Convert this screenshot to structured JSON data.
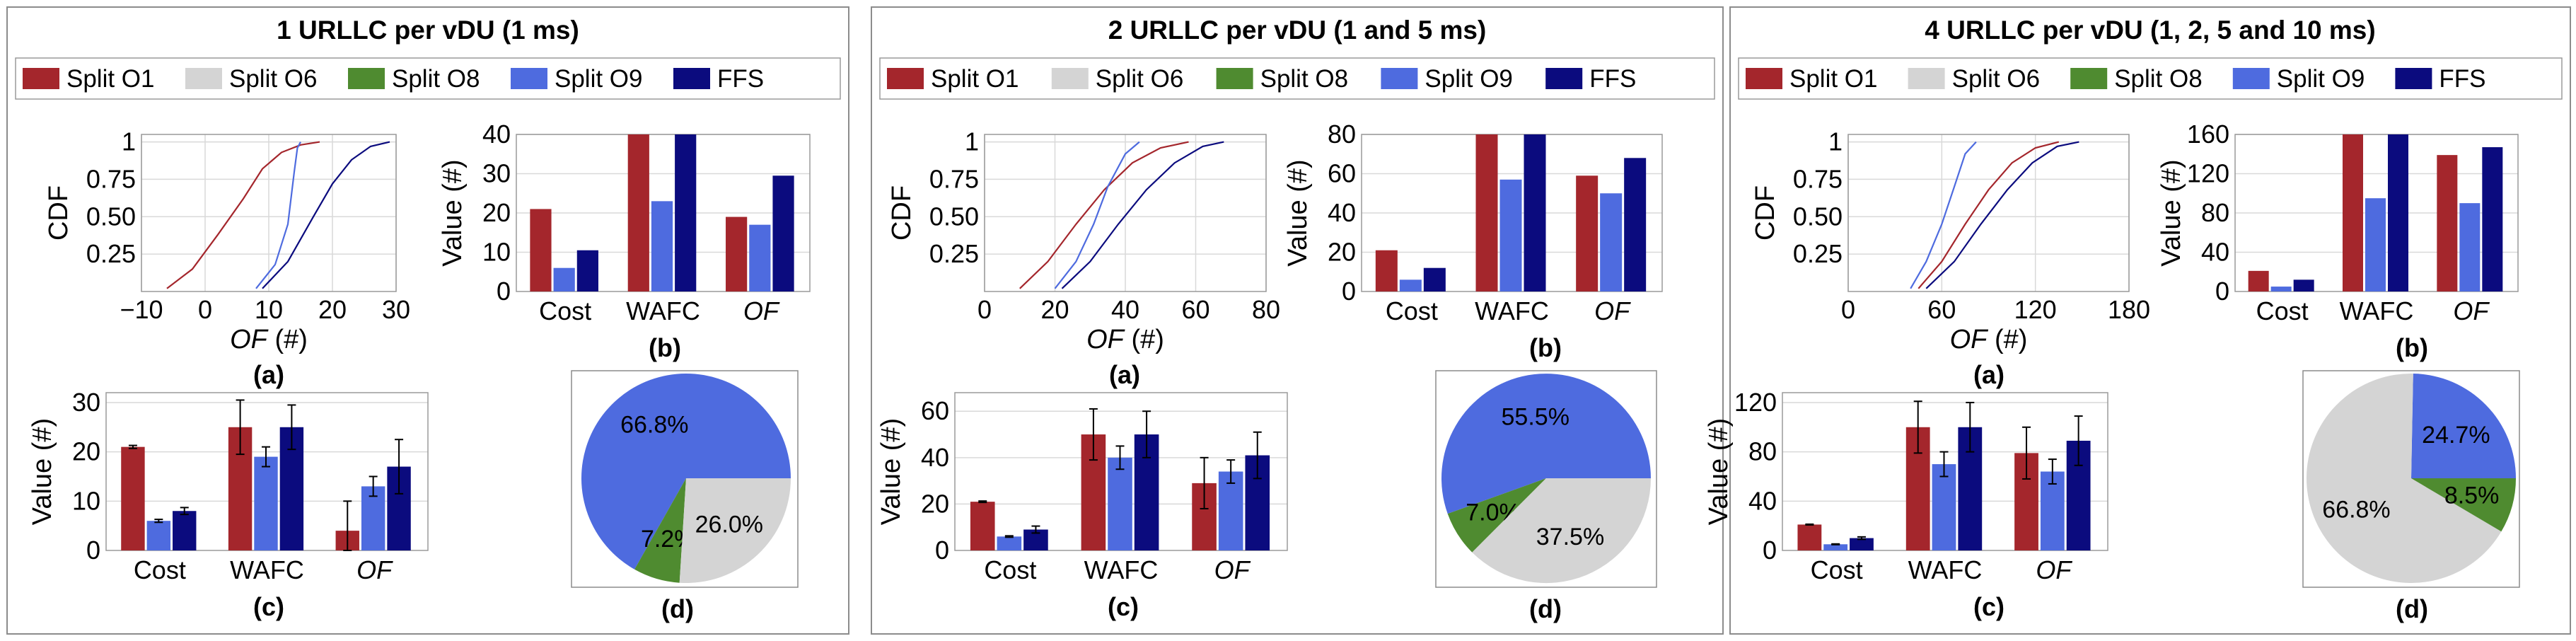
{
  "colors": {
    "Split O1": "#a4262c",
    "Split O6": "#d4d4d4",
    "Split O8": "#4f8b30",
    "Split O9": "#4e6bdf",
    "FFS": "#0b0b7e"
  },
  "legend": [
    "Split O1",
    "Split O6",
    "Split O8",
    "Split O9",
    "FFS"
  ],
  "sublabels": {
    "a": "(a)",
    "b": "(b)",
    "c": "(c)",
    "d": "(d)"
  },
  "chart_data": [
    {
      "title": "1 URLLC per vDU (1 ms)",
      "cdf": {
        "type": "line",
        "xlabel": "OF (#)",
        "ylabel": "CDF",
        "xlim": [
          -10,
          30
        ],
        "xticks": [
          -10,
          0,
          10,
          20,
          30
        ],
        "ylim": [
          0,
          1.05
        ],
        "yticks": [
          0.25,
          0.5,
          0.75,
          1.0
        ],
        "series": [
          {
            "name": "Split O1",
            "points": [
              [
                -6,
                0.02
              ],
              [
                -2,
                0.15
              ],
              [
                2,
                0.38
              ],
              [
                6,
                0.62
              ],
              [
                9,
                0.82
              ],
              [
                12,
                0.93
              ],
              [
                15,
                0.98
              ],
              [
                18,
                1.0
              ]
            ]
          },
          {
            "name": "Split O9",
            "points": [
              [
                8,
                0.02
              ],
              [
                11,
                0.18
              ],
              [
                13,
                0.45
              ],
              [
                14,
                0.8
              ],
              [
                14.5,
                0.96
              ],
              [
                15,
                1.0
              ]
            ]
          },
          {
            "name": "FFS",
            "points": [
              [
                9,
                0.02
              ],
              [
                13,
                0.2
              ],
              [
                17,
                0.5
              ],
              [
                20,
                0.72
              ],
              [
                23,
                0.88
              ],
              [
                26,
                0.97
              ],
              [
                29,
                1.0
              ]
            ]
          }
        ]
      },
      "bar": {
        "type": "bar",
        "ylabel": "Value (#)",
        "categories": [
          "Cost",
          "WAFC",
          "OF"
        ],
        "ylim": [
          0,
          40
        ],
        "yticks": [
          0,
          10,
          20,
          30,
          40
        ],
        "series": [
          {
            "name": "Split O1",
            "values": [
              21,
              40,
              19
            ]
          },
          {
            "name": "Split O9",
            "values": [
              6,
              23,
              17
            ]
          },
          {
            "name": "FFS",
            "values": [
              10.5,
              40,
              29.5
            ]
          }
        ]
      },
      "errbar": {
        "type": "bar",
        "ylabel": "Value (#)",
        "categories": [
          "Cost",
          "WAFC",
          "OF"
        ],
        "ylim": [
          0,
          32
        ],
        "yticks": [
          0,
          10,
          20,
          30
        ],
        "series": [
          {
            "name": "Split O1",
            "values": [
              21,
              25,
              4
            ],
            "errors": [
              0.3,
              5.5,
              6
            ]
          },
          {
            "name": "Split O9",
            "values": [
              6,
              19,
              13
            ],
            "errors": [
              0.3,
              2,
              2
            ]
          },
          {
            "name": "FFS",
            "values": [
              8,
              25,
              17
            ],
            "errors": [
              0.7,
              4.5,
              5.5
            ]
          }
        ]
      },
      "pie": {
        "type": "pie",
        "slices": [
          {
            "name": "Split O9",
            "value": 66.8,
            "label": "66.8%"
          },
          {
            "name": "Split O8",
            "value": 7.2,
            "label": "7.2%"
          },
          {
            "name": "Split O6",
            "value": 26.0,
            "label": "26.0%"
          }
        ]
      }
    },
    {
      "title": "2 URLLC per vDU (1 and 5 ms)",
      "cdf": {
        "type": "line",
        "xlabel": "OF (#)",
        "ylabel": "CDF",
        "xlim": [
          0,
          80
        ],
        "xticks": [
          0,
          20,
          40,
          60,
          80
        ],
        "ylim": [
          0,
          1.05
        ],
        "yticks": [
          0.25,
          0.5,
          0.75,
          1.0
        ],
        "series": [
          {
            "name": "Split O1",
            "points": [
              [
                10,
                0.02
              ],
              [
                18,
                0.2
              ],
              [
                26,
                0.45
              ],
              [
                34,
                0.68
              ],
              [
                42,
                0.86
              ],
              [
                50,
                0.96
              ],
              [
                58,
                1.0
              ]
            ]
          },
          {
            "name": "Split O9",
            "points": [
              [
                20,
                0.02
              ],
              [
                26,
                0.2
              ],
              [
                31,
                0.45
              ],
              [
                35,
                0.7
              ],
              [
                40,
                0.92
              ],
              [
                44,
                1.0
              ]
            ]
          },
          {
            "name": "FFS",
            "points": [
              [
                22,
                0.02
              ],
              [
                30,
                0.2
              ],
              [
                38,
                0.45
              ],
              [
                46,
                0.68
              ],
              [
                54,
                0.86
              ],
              [
                62,
                0.97
              ],
              [
                68,
                1.0
              ]
            ]
          }
        ]
      },
      "bar": {
        "type": "bar",
        "ylabel": "Value (#)",
        "categories": [
          "Cost",
          "WAFC",
          "OF"
        ],
        "ylim": [
          0,
          80
        ],
        "yticks": [
          0,
          20,
          40,
          60,
          80
        ],
        "series": [
          {
            "name": "Split O1",
            "values": [
              21,
              80,
              59
            ]
          },
          {
            "name": "Split O9",
            "values": [
              6,
              57,
              50
            ]
          },
          {
            "name": "FFS",
            "values": [
              12,
              80,
              68
            ]
          }
        ]
      },
      "errbar": {
        "type": "bar",
        "ylabel": "Value (#)",
        "categories": [
          "Cost",
          "WAFC",
          "OF"
        ],
        "ylim": [
          0,
          68
        ],
        "yticks": [
          0,
          20,
          40,
          60
        ],
        "series": [
          {
            "name": "Split O1",
            "values": [
              21,
              50,
              29
            ],
            "errors": [
              0.3,
              11,
              11
            ]
          },
          {
            "name": "Split O9",
            "values": [
              6,
              40,
              34
            ],
            "errors": [
              0.3,
              5,
              5
            ]
          },
          {
            "name": "FFS",
            "values": [
              9,
              50,
              41
            ],
            "errors": [
              1.5,
              10,
              10
            ]
          }
        ]
      },
      "pie": {
        "type": "pie",
        "slices": [
          {
            "name": "Split O9",
            "value": 55.5,
            "label": "55.5%"
          },
          {
            "name": "Split O8",
            "value": 7.0,
            "label": "7.0%"
          },
          {
            "name": "Split O6",
            "value": 37.5,
            "label": "37.5%"
          }
        ]
      }
    },
    {
      "title": "4 URLLC per vDU (1, 2, 5 and 10 ms)",
      "cdf": {
        "type": "line",
        "xlabel": "OF (#)",
        "ylabel": "CDF",
        "xlim": [
          0,
          180
        ],
        "xticks": [
          0,
          60,
          120,
          180
        ],
        "ylim": [
          0,
          1.05
        ],
        "yticks": [
          0.25,
          0.5,
          0.75,
          1.0
        ],
        "series": [
          {
            "name": "Split O1",
            "points": [
              [
                45,
                0.02
              ],
              [
                60,
                0.2
              ],
              [
                75,
                0.45
              ],
              [
                90,
                0.68
              ],
              [
                105,
                0.86
              ],
              [
                120,
                0.96
              ],
              [
                135,
                1.0
              ]
            ]
          },
          {
            "name": "Split O9",
            "points": [
              [
                40,
                0.02
              ],
              [
                50,
                0.2
              ],
              [
                60,
                0.45
              ],
              [
                68,
                0.7
              ],
              [
                75,
                0.92
              ],
              [
                82,
                1.0
              ]
            ]
          },
          {
            "name": "FFS",
            "points": [
              [
                50,
                0.02
              ],
              [
                68,
                0.2
              ],
              [
                85,
                0.45
              ],
              [
                102,
                0.68
              ],
              [
                118,
                0.86
              ],
              [
                134,
                0.97
              ],
              [
                148,
                1.0
              ]
            ]
          }
        ]
      },
      "bar": {
        "type": "bar",
        "ylabel": "Value (#)",
        "categories": [
          "Cost",
          "WAFC",
          "OF"
        ],
        "ylim": [
          0,
          160
        ],
        "yticks": [
          0,
          40,
          80,
          120,
          160
        ],
        "series": [
          {
            "name": "Split O1",
            "values": [
              21,
              160,
              139
            ]
          },
          {
            "name": "Split O9",
            "values": [
              5,
              95,
              90
            ]
          },
          {
            "name": "FFS",
            "values": [
              12,
              160,
              147
            ]
          }
        ]
      },
      "errbar": {
        "type": "bar",
        "ylabel": "Value (#)",
        "categories": [
          "Cost",
          "WAFC",
          "OF"
        ],
        "ylim": [
          0,
          128
        ],
        "yticks": [
          0,
          40,
          80,
          120
        ],
        "series": [
          {
            "name": "Split O1",
            "values": [
              21,
              100,
              79
            ],
            "errors": [
              0.3,
              21,
              21
            ]
          },
          {
            "name": "Split O9",
            "values": [
              5,
              70,
              64
            ],
            "errors": [
              0.3,
              10,
              10
            ]
          },
          {
            "name": "FFS",
            "values": [
              10,
              100,
              89
            ],
            "errors": [
              1,
              20,
              20
            ]
          }
        ]
      },
      "pie": {
        "type": "pie",
        "slices": [
          {
            "name": "Split O9",
            "value": 24.7,
            "label": "24.7%"
          },
          {
            "name": "Split O6",
            "value": 66.8,
            "label": "66.8%"
          },
          {
            "name": "Split O8",
            "value": 8.5,
            "label": "8.5%"
          }
        ]
      }
    }
  ]
}
